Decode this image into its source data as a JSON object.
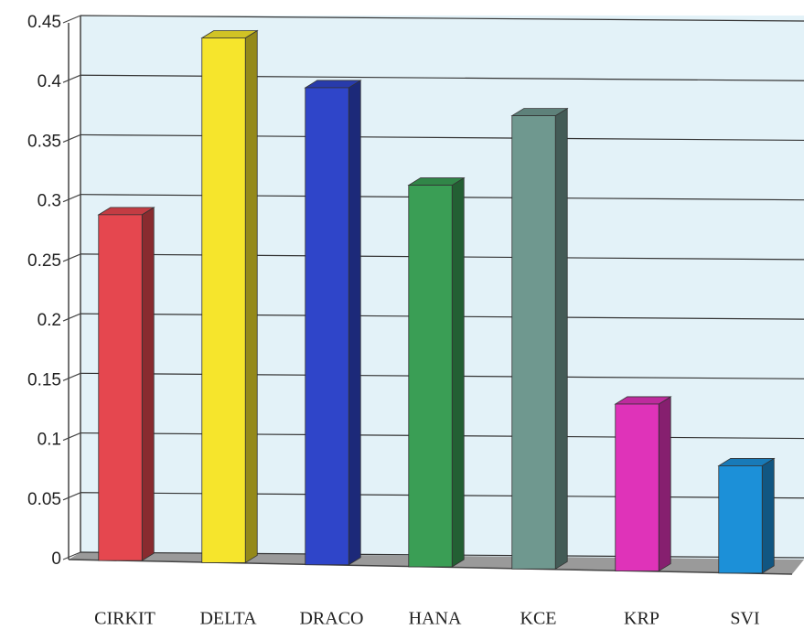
{
  "chart_data": {
    "type": "bar3d",
    "categories": [
      "CIRKIT",
      "DELTA",
      "DRACO",
      "HANA",
      "KCE",
      "KRP",
      "SVI"
    ],
    "values": [
      0.29,
      0.44,
      0.4,
      0.32,
      0.38,
      0.14,
      0.09
    ],
    "colors": [
      "#e5474f",
      "#f6e52c",
      "#2f45c9",
      "#3a9e55",
      "#6f988f",
      "#df33b9",
      "#1c90d8"
    ],
    "ylim": [
      0,
      0.45
    ],
    "yticks": [
      0,
      0.05,
      0.1,
      0.15,
      0.2,
      0.25,
      0.3,
      0.35,
      0.4,
      0.45
    ],
    "grid": true
  }
}
